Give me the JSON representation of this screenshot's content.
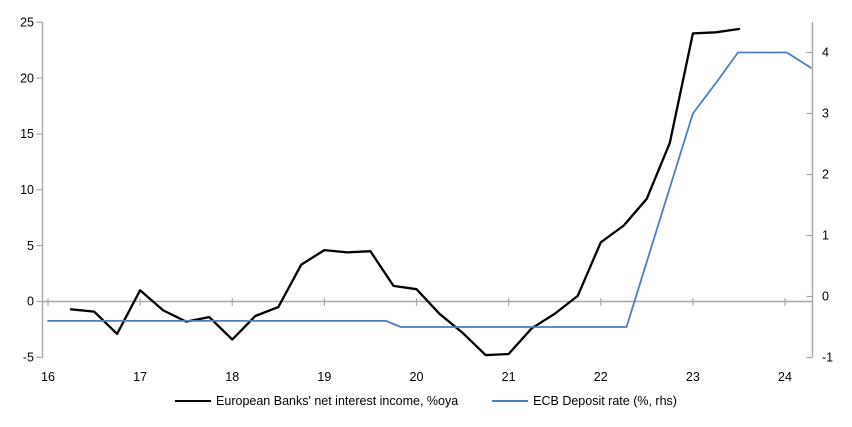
{
  "chart_data": {
    "type": "line",
    "title": "",
    "grid": "zero-line-only",
    "legend_position": "bottom-center",
    "colors": {
      "axis": "#a6a6a6",
      "text": "#000000",
      "background": "#ffffff",
      "series1": "#000000",
      "series2": "#4a7ebc"
    },
    "x_axis": {
      "tick_labels": [
        "16",
        "17",
        "18",
        "19",
        "20",
        "21",
        "22",
        "23",
        "24"
      ],
      "tick_values": [
        16,
        17,
        18,
        19,
        20,
        21,
        22,
        23,
        24
      ],
      "range": [
        16,
        24.3
      ]
    },
    "left_axis": {
      "tick_labels": [
        "25",
        "20",
        "15",
        "10",
        "5",
        "0",
        "-5"
      ],
      "tick_values": [
        25,
        20,
        15,
        10,
        5,
        0,
        -5
      ],
      "range": [
        -5,
        25
      ]
    },
    "right_axis": {
      "tick_labels": [
        "4",
        "3",
        "2",
        "1",
        "0",
        "-1"
      ],
      "tick_values": [
        4,
        3,
        2,
        1,
        0,
        -1
      ],
      "range": [
        -1,
        4.47
      ]
    },
    "series": [
      {
        "name": "European Banks' net interest income, %oya",
        "axis": "left",
        "color": "#000000",
        "stroke_width": 2.3,
        "x": [
          16.25,
          16.5,
          16.75,
          17.0,
          17.25,
          17.5,
          17.75,
          18.0,
          18.25,
          18.5,
          18.75,
          19.0,
          19.25,
          19.5,
          19.75,
          20.0,
          20.25,
          20.5,
          20.75,
          21.0,
          21.25,
          21.5,
          21.75,
          22.0,
          22.25,
          22.5,
          22.75,
          23.0,
          23.25,
          23.5
        ],
        "values": [
          -0.7,
          -0.9,
          -2.9,
          1.0,
          -0.8,
          -1.8,
          -1.4,
          -3.4,
          -1.3,
          -0.5,
          3.3,
          4.6,
          4.4,
          4.5,
          1.4,
          1.1,
          -1.1,
          -2.8,
          -4.8,
          -4.7,
          -2.4,
          -1.1,
          0.5,
          5.3,
          6.8,
          9.2,
          14.2,
          24.0,
          24.1,
          24.4
        ]
      },
      {
        "name": "ECB Deposit rate (%, rhs)",
        "axis": "right",
        "color": "#4a7ebc",
        "stroke_width": 1.8,
        "x": [
          16.0,
          19.67,
          19.83,
          22.28,
          23.0,
          23.25,
          23.49,
          24.02,
          24.28
        ],
        "values": [
          -0.4,
          -0.4,
          -0.5,
          -0.5,
          3.0,
          3.5,
          4.0,
          4.0,
          3.75
        ]
      }
    ]
  }
}
